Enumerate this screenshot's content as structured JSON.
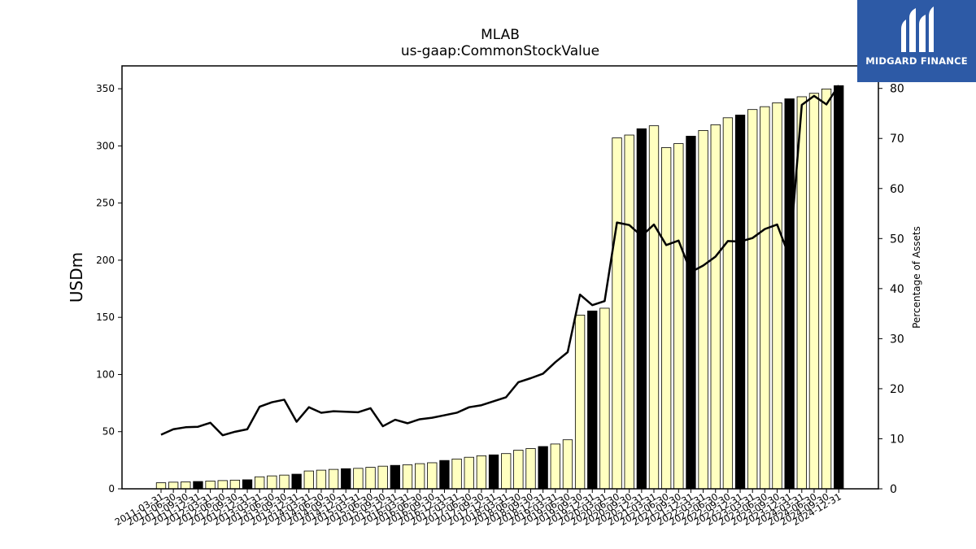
{
  "brand": {
    "name": "MIDGARD FINANCE",
    "logo_icon": "midgard-m-logo-icon",
    "background": "#2d5aa6"
  },
  "chart_data": {
    "type": "bar",
    "title": "MLAB",
    "subtitle": "us-gaap:CommonStockValue",
    "ylabel": "USDm",
    "ylabel_right": "Percentage of Assets",
    "ylim": [
      0,
      370
    ],
    "ylim_right": [
      0,
      84.5
    ],
    "yticks": [
      0,
      50,
      100,
      150,
      200,
      250,
      300,
      350
    ],
    "yticks_right": [
      0,
      10,
      20,
      30,
      40,
      50,
      60,
      70,
      80
    ],
    "bar_colors": {
      "quarter": "#ffffc0",
      "fiscal_year_end": "#000000"
    },
    "categories": [
      "2011-03-31",
      "2011-06-30",
      "2011-09-30",
      "2011-12-31",
      "2012-03-31",
      "2012-06-30",
      "2012-09-30",
      "2012-12-31",
      "2013-03-31",
      "2013-06-30",
      "2013-09-30",
      "2013-12-31",
      "2014-03-31",
      "2014-06-30",
      "2014-09-30",
      "2014-12-31",
      "2015-03-31",
      "2015-06-30",
      "2015-09-30",
      "2015-12-31",
      "2016-03-31",
      "2016-06-30",
      "2016-09-30",
      "2016-12-31",
      "2017-03-31",
      "2017-06-30",
      "2017-09-30",
      "2017-12-31",
      "2018-03-31",
      "2018-06-30",
      "2018-09-30",
      "2018-12-31",
      "2019-03-31",
      "2019-06-30",
      "2019-09-30",
      "2019-12-31",
      "2020-03-31",
      "2020-06-30",
      "2020-09-30",
      "2020-12-31",
      "2021-03-31",
      "2021-06-30",
      "2021-09-30",
      "2021-12-31",
      "2022-03-31",
      "2022-06-30",
      "2022-09-30",
      "2022-12-31",
      "2023-03-31",
      "2023-06-30",
      "2023-09-30",
      "2023-12-31",
      "2024-03-31",
      "2024-06-30",
      "2024-09-30",
      "2024-12-31"
    ],
    "series": [
      {
        "type": "bar",
        "axis": "left",
        "values": [
          5.3,
          5.8,
          6.1,
          6.4,
          6.8,
          7.2,
          7.6,
          7.9,
          10.5,
          11.3,
          12.0,
          12.8,
          15.6,
          16.3,
          17.0,
          17.6,
          17.9,
          18.8,
          19.8,
          20.5,
          21.0,
          22.0,
          22.8,
          24.8,
          26.1,
          27.6,
          28.9,
          29.7,
          30.8,
          33.8,
          35.2,
          37.0,
          39.2,
          42.9,
          152.0,
          155.6,
          158.0,
          307.0,
          309.5,
          315.0,
          317.6,
          298.5,
          302.0,
          308.5,
          313.5,
          318.5,
          324.6,
          327.0,
          331.8,
          334.3,
          337.7,
          341.2,
          343.0,
          346.0,
          349.8,
          352.7
        ],
        "fiscal_year_end": [
          false,
          false,
          false,
          true,
          false,
          false,
          false,
          true,
          false,
          false,
          false,
          true,
          false,
          false,
          false,
          true,
          false,
          false,
          false,
          true,
          false,
          false,
          false,
          true,
          false,
          false,
          false,
          true,
          false,
          false,
          false,
          true,
          false,
          false,
          false,
          true,
          false,
          false,
          false,
          true,
          false,
          false,
          false,
          true,
          false,
          false,
          false,
          true,
          false,
          false,
          false,
          true,
          false,
          false,
          false,
          true
        ]
      },
      {
        "type": "line",
        "axis": "right",
        "color": "#000000",
        "values": [
          10.8,
          11.9,
          12.3,
          12.4,
          13.2,
          10.7,
          11.4,
          11.9,
          16.4,
          17.3,
          17.8,
          13.4,
          16.3,
          15.2,
          15.5,
          15.4,
          15.3,
          16.1,
          12.5,
          13.8,
          13.1,
          13.9,
          14.2,
          14.7,
          15.2,
          16.3,
          16.7,
          17.5,
          18.3,
          21.3,
          22.1,
          23.0,
          25.3,
          27.3,
          38.8,
          36.7,
          37.5,
          53.2,
          52.7,
          50.5,
          52.8,
          48.7,
          49.6,
          43.3,
          44.6,
          46.4,
          49.5,
          49.4,
          50.1,
          51.9,
          52.8,
          46.3,
          76.7,
          78.5,
          76.8,
          80.6
        ]
      }
    ]
  }
}
